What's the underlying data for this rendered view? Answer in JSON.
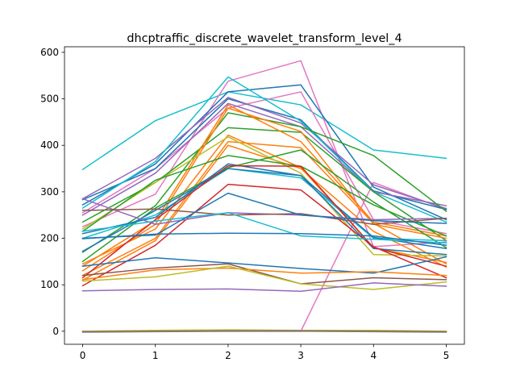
{
  "chart_data": {
    "type": "line",
    "title": "dhcptraffic_discrete_wavelet_transform_level_4",
    "xlabel": "",
    "ylabel": "",
    "x": [
      0,
      1,
      2,
      3,
      4,
      5
    ],
    "xlim": [
      -0.25,
      5.25
    ],
    "ylim": [
      -28,
      612
    ],
    "xticks": [
      0,
      1,
      2,
      3,
      4,
      5
    ],
    "yticks": [
      0,
      100,
      200,
      300,
      400,
      500,
      600
    ],
    "grid": false,
    "legend": "none",
    "series": [
      {
        "color": "#17becf",
        "values": [
          348,
          453,
          515,
          487,
          390,
          372
        ]
      },
      {
        "color": "#e377c2",
        "values": [
          0,
          0,
          0,
          0,
          320,
          262
        ]
      },
      {
        "color": "#e377c2",
        "values": [
          225,
          295,
          538,
          582,
          182,
          192
        ]
      },
      {
        "color": "#e377c2",
        "values": [
          255,
          350,
          480,
          515,
          240,
          210
        ]
      },
      {
        "color": "#1f77b4",
        "values": [
          272,
          360,
          515,
          530,
          310,
          240
        ]
      },
      {
        "color": "#1f77b4",
        "values": [
          283,
          350,
          500,
          455,
          302,
          262
        ]
      },
      {
        "color": "#9467bd",
        "values": [
          285,
          372,
          503,
          448,
          315,
          264
        ]
      },
      {
        "color": "#9467bd",
        "values": [
          250,
          340,
          490,
          440,
          300,
          270
        ]
      },
      {
        "color": "#17becf",
        "values": [
          265,
          365,
          547,
          452,
          300,
          235
        ]
      },
      {
        "color": "#2ca02c",
        "values": [
          170,
          270,
          470,
          440,
          378,
          258
        ]
      },
      {
        "color": "#2ca02c",
        "values": [
          235,
          320,
          438,
          428,
          300,
          195
        ]
      },
      {
        "color": "#ff7f0e",
        "values": [
          140,
          238,
          487,
          408,
          235,
          205
        ]
      },
      {
        "color": "#ff7f0e",
        "values": [
          130,
          230,
          480,
          430,
          230,
          200
        ]
      },
      {
        "color": "#ff7f0e",
        "values": [
          120,
          200,
          408,
          395,
          232,
          145
        ]
      },
      {
        "color": "#ff7f0e",
        "values": [
          110,
          195,
          400,
          350,
          215,
          138
        ]
      },
      {
        "color": "#ff7f0e",
        "values": [
          145,
          220,
          422,
          352,
          180,
          148
        ]
      },
      {
        "color": "#bcbd22",
        "values": [
          220,
          320,
          418,
          340,
          165,
          162
        ]
      },
      {
        "color": "#2ca02c",
        "values": [
          215,
          325,
          378,
          355,
          272,
          205
        ]
      },
      {
        "color": "#2ca02c",
        "values": [
          150,
          265,
          352,
          390,
          278,
          180
        ]
      },
      {
        "color": "#17becf",
        "values": [
          200,
          250,
          350,
          330,
          200,
          195
        ]
      },
      {
        "color": "#1f77b4",
        "values": [
          172,
          260,
          350,
          335,
          178,
          165
        ]
      },
      {
        "color": "#1f77b4",
        "values": [
          210,
          245,
          360,
          335,
          202,
          178
        ]
      },
      {
        "color": "#d62728",
        "values": [
          98,
          185,
          316,
          304,
          182,
          115
        ]
      },
      {
        "color": "#d62728",
        "values": [
          115,
          240,
          356,
          355,
          180,
          140
        ]
      },
      {
        "color": "#9467bd",
        "values": [
          285,
          230,
          255,
          250,
          240,
          243
        ]
      },
      {
        "color": "#8c564b",
        "values": [
          260,
          263,
          250,
          253,
          230,
          243
        ]
      },
      {
        "color": "#17becf",
        "values": [
          215,
          237,
          255,
          205,
          198,
          190
        ]
      },
      {
        "color": "#1f77b4",
        "values": [
          200,
          207,
          297,
          250,
          238,
          232
        ]
      },
      {
        "color": "#1f77b4",
        "values": [
          199,
          209,
          211,
          210,
          205,
          185
        ]
      },
      {
        "color": "#1f77b4",
        "values": [
          140,
          158,
          147,
          135,
          125,
          160
        ]
      },
      {
        "color": "#8c564b",
        "values": [
          120,
          136,
          145,
          102,
          115,
          111
        ]
      },
      {
        "color": "#ff7f0e",
        "values": [
          111,
          132,
          136,
          125,
          128,
          120
        ]
      },
      {
        "color": "#bcbd22",
        "values": [
          108,
          117,
          140,
          102,
          90,
          106
        ]
      },
      {
        "color": "#9467bd",
        "values": [
          87,
          90,
          91,
          86,
          104,
          97
        ]
      },
      {
        "color": "#bcbd22",
        "values": [
          0,
          2,
          3,
          2,
          2,
          0
        ]
      },
      {
        "color": "#8c564b",
        "values": [
          -1,
          0,
          1,
          1,
          0,
          -1
        ]
      },
      {
        "color": "#7f7f7f",
        "values": [
          -2,
          -1,
          0,
          0,
          -1,
          -2
        ]
      }
    ]
  }
}
